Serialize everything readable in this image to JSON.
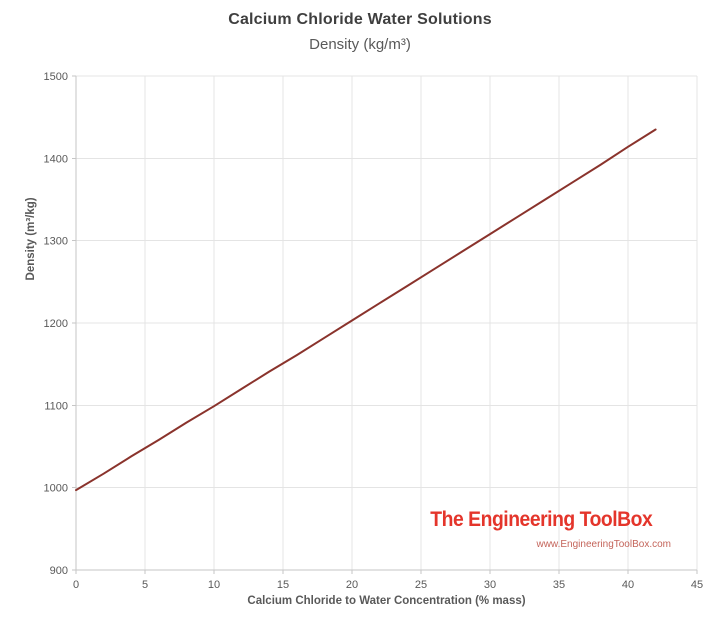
{
  "title": "Calcium Chloride Water Solutions",
  "subtitle": "Density (kg/m³)",
  "branding": {
    "name": "The Engineering ToolBox",
    "url": "www.EngineeringToolBox.com"
  },
  "colors": {
    "line": "#8a332c",
    "grid": "#e4e4e4",
    "axis": "#c6c6c6",
    "tick_text": "#595959",
    "title_text": "#3f3f3f",
    "subtitle_text": "#595959",
    "brand_red": "#e4352b",
    "brand_url_red": "#c4645a",
    "background": "#ffffff"
  },
  "chart_data": {
    "type": "line",
    "title": "Calcium Chloride Water Solutions",
    "subtitle": "Density (kg/m³)",
    "xlabel": "Calcium Chloride to Water Concentration (% mass)",
    "ylabel": "Density (m³/kg)",
    "xlim": [
      0,
      45
    ],
    "ylim": [
      900,
      1500
    ],
    "xticks": [
      0,
      5,
      10,
      15,
      20,
      25,
      30,
      35,
      40,
      45
    ],
    "yticks": [
      900,
      1000,
      1100,
      1200,
      1300,
      1400,
      1500
    ],
    "grid": true,
    "legend": "none",
    "series": [
      {
        "name": "Density",
        "x": [
          0,
          2,
          4,
          6,
          8,
          10,
          12,
          14,
          16,
          18,
          20,
          22,
          24,
          26,
          28,
          30,
          32,
          34,
          36,
          38,
          40,
          42
        ],
        "y": [
          997,
          1017,
          1038,
          1058,
          1079,
          1099,
          1120,
          1141,
          1161,
          1182,
          1203,
          1224,
          1245,
          1266,
          1287,
          1308,
          1329,
          1350,
          1371,
          1392,
          1414,
          1435
        ]
      }
    ]
  }
}
